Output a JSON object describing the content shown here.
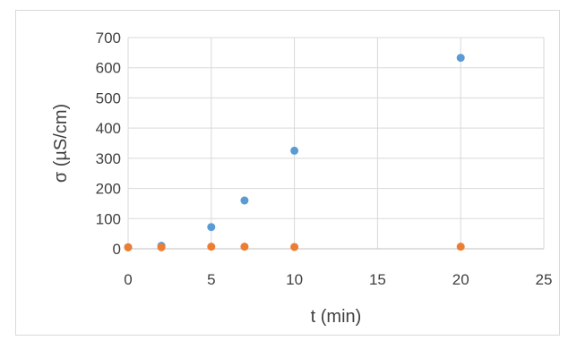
{
  "chart_data": {
    "type": "scatter",
    "title": "",
    "xlabel": "t (min)",
    "ylabel": "σ (µS/cm)",
    "xlim": [
      0,
      25
    ],
    "ylim": [
      0,
      700
    ],
    "xticks": [
      0,
      5,
      10,
      15,
      20,
      25
    ],
    "yticks": [
      0,
      100,
      200,
      300,
      400,
      500,
      600,
      700
    ],
    "grid": true,
    "legend": "none",
    "series": [
      {
        "color": "#5b9bd5",
        "x": [
          0,
          2,
          5,
          7,
          10,
          20
        ],
        "y": [
          5,
          10,
          72,
          160,
          325,
          633
        ]
      },
      {
        "color": "#ed7d31",
        "x": [
          0,
          2,
          5,
          7,
          10,
          20
        ],
        "y": [
          5,
          5,
          7,
          7,
          6,
          7
        ]
      }
    ]
  }
}
